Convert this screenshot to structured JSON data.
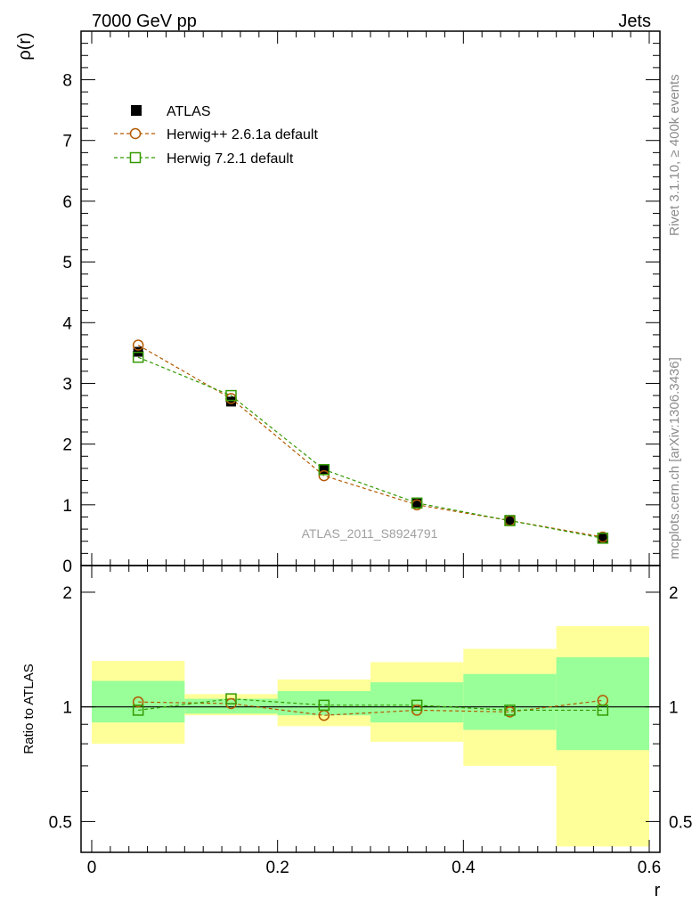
{
  "header": {
    "left": "7000 GeV pp",
    "right": "Jets"
  },
  "side_labels": {
    "top": "Rivet 3.1.10, ≥ 400k events",
    "bottom": "mcplots.cern.ch [arXiv:1306.3436]"
  },
  "watermark": "ATLAS_2011_S8924791",
  "legend": [
    {
      "label": "ATLAS",
      "marker": "filled-square",
      "color": "#000000"
    },
    {
      "label": "Herwig++ 2.6.1a default",
      "marker": "open-circle",
      "color": "#b35900"
    },
    {
      "label": "Herwig 7.2.1 default",
      "marker": "open-square",
      "color": "#339900"
    }
  ],
  "colors": {
    "band_outer": "#ffff99",
    "band_inner": "#99ff99",
    "herwig_pp": "#b35900",
    "herwig7": "#339900",
    "data": "#000000"
  },
  "chart_data": [
    {
      "type": "scatter",
      "panel": "main",
      "ylabel": "ρ(r)",
      "xlim": [
        0,
        0.6
      ],
      "ylim": [
        0,
        8.8
      ],
      "y_ticks": [
        "0",
        "1",
        "2",
        "3",
        "4",
        "5",
        "6",
        "7",
        "8"
      ],
      "x": [
        0.05,
        0.15,
        0.25,
        0.35,
        0.45,
        0.55
      ],
      "x_bin_edges": [
        0,
        0.1,
        0.2,
        0.3,
        0.4,
        0.5,
        0.6
      ],
      "series": [
        {
          "name": "ATLAS",
          "values": [
            3.52,
            2.7,
            1.57,
            1.02,
            0.75,
            0.45
          ]
        },
        {
          "name": "Herwig++ 2.6.1a default",
          "values": [
            3.63,
            2.75,
            1.48,
            1.0,
            0.74,
            0.47
          ]
        },
        {
          "name": "Herwig 7.2.1 default",
          "values": [
            3.43,
            2.8,
            1.58,
            1.03,
            0.74,
            0.45
          ]
        }
      ]
    },
    {
      "type": "scatter",
      "panel": "ratio",
      "ylabel": "Ratio to ATLAS",
      "xlabel": "r",
      "log_y": true,
      "xlim": [
        0,
        0.6
      ],
      "ylim": [
        0.415,
        2.35
      ],
      "x_ticks": [
        "0",
        "0.2",
        "0.4",
        "0.6"
      ],
      "y_ticks": [
        "0.5",
        "1",
        "2"
      ],
      "x": [
        0.05,
        0.15,
        0.25,
        0.35,
        0.45,
        0.55
      ],
      "bands": {
        "outer_low": [
          0.8,
          0.95,
          0.89,
          0.81,
          0.7,
          0.43
        ],
        "outer_high": [
          1.32,
          1.08,
          1.18,
          1.31,
          1.42,
          1.63
        ],
        "inner_low": [
          0.91,
          0.96,
          0.95,
          0.91,
          0.87,
          0.77
        ],
        "inner_high": [
          1.17,
          1.05,
          1.1,
          1.16,
          1.22,
          1.35
        ]
      },
      "series": [
        {
          "name": "Herwig++ 2.6.1a default",
          "values": [
            1.03,
            1.02,
            0.95,
            0.98,
            0.97,
            1.04
          ]
        },
        {
          "name": "Herwig 7.2.1 default",
          "values": [
            0.98,
            1.05,
            1.01,
            1.01,
            0.98,
            0.98
          ]
        }
      ]
    }
  ]
}
